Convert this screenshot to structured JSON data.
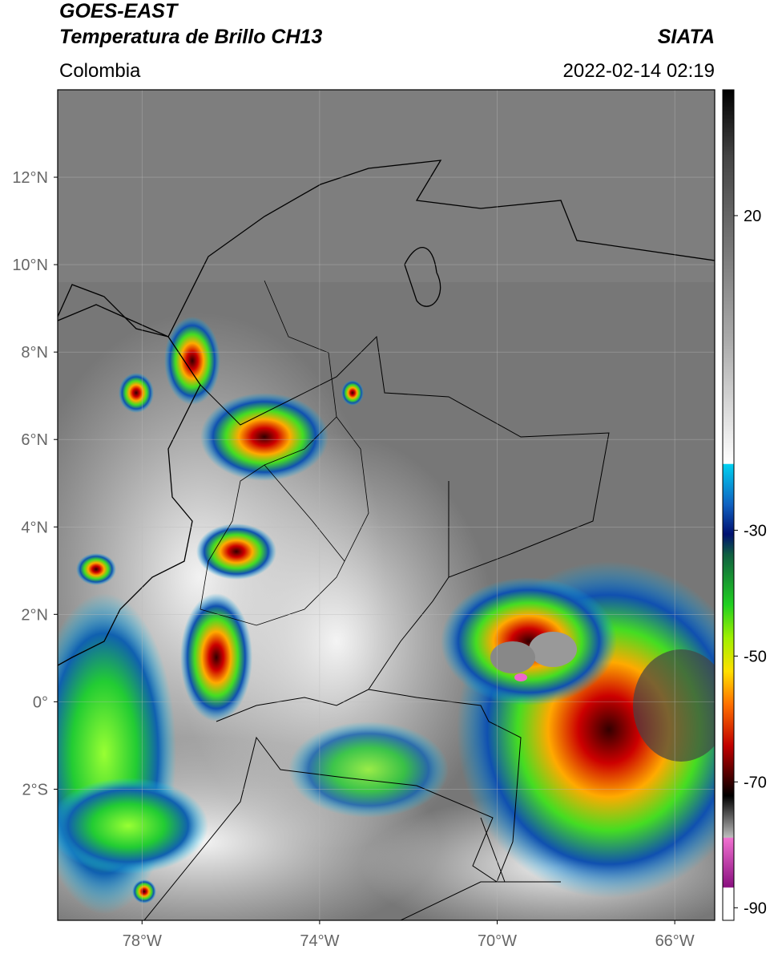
{
  "header": {
    "title": "GOES-EAST",
    "subtitle": "Temperatura de Brillo CH13",
    "source": "SIATA",
    "region": "Colombia",
    "datetime": "2022-02-14 02:19"
  },
  "map": {
    "lonlim": [
      -79.9,
      -65.1
    ],
    "latlim": [
      -5,
      14
    ],
    "xticks": [
      {
        "value": -78,
        "label": "78°W"
      },
      {
        "value": -74,
        "label": "74°W"
      },
      {
        "value": -70,
        "label": "70°W"
      },
      {
        "value": -66,
        "label": "66°W"
      }
    ],
    "yticks": [
      {
        "value": 12,
        "label": "12°N"
      },
      {
        "value": 10,
        "label": "10°N"
      },
      {
        "value": 8,
        "label": "8°N"
      },
      {
        "value": 6,
        "label": "6°N"
      },
      {
        "value": 4,
        "label": "4°N"
      },
      {
        "value": 2,
        "label": "2°N"
      },
      {
        "value": 0,
        "label": "0°"
      },
      {
        "value": -2,
        "label": "2°S"
      }
    ]
  },
  "colorbar": {
    "lim": [
      -92,
      40
    ],
    "ticks": [
      20,
      -30,
      -50,
      -70,
      -90
    ]
  }
}
